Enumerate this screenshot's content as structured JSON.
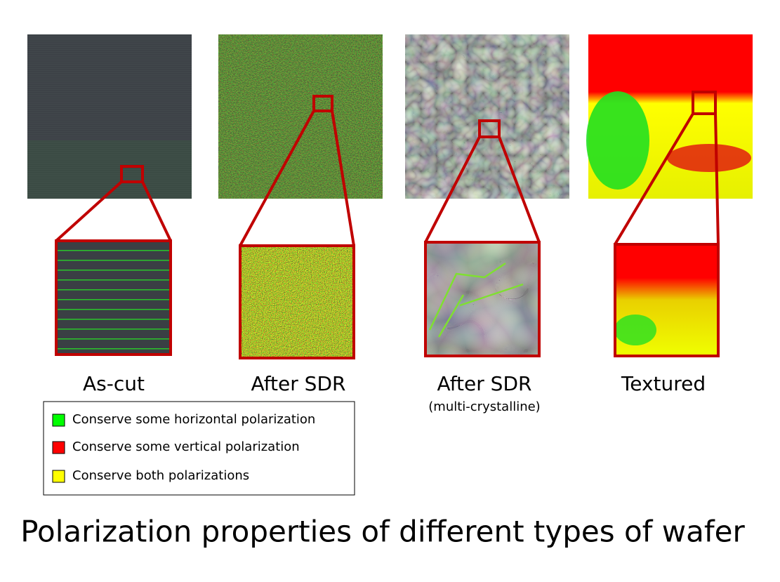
{
  "panels": [
    {
      "label": "As-cut"
    },
    {
      "label": "After SDR"
    },
    {
      "label": "After SDR",
      "sublabel": "(multi-crystalline)"
    },
    {
      "label": "Textured"
    }
  ],
  "legend": {
    "items": [
      {
        "label": "Conserve some horizontal polarization",
        "color": "#00ff00"
      },
      {
        "label": "Conserve some vertical polarization",
        "color": "#ff0000"
      },
      {
        "label": "Conserve both polarizations",
        "color": "#ffff00"
      }
    ]
  },
  "title": "Polarization properties of different types of wafer"
}
